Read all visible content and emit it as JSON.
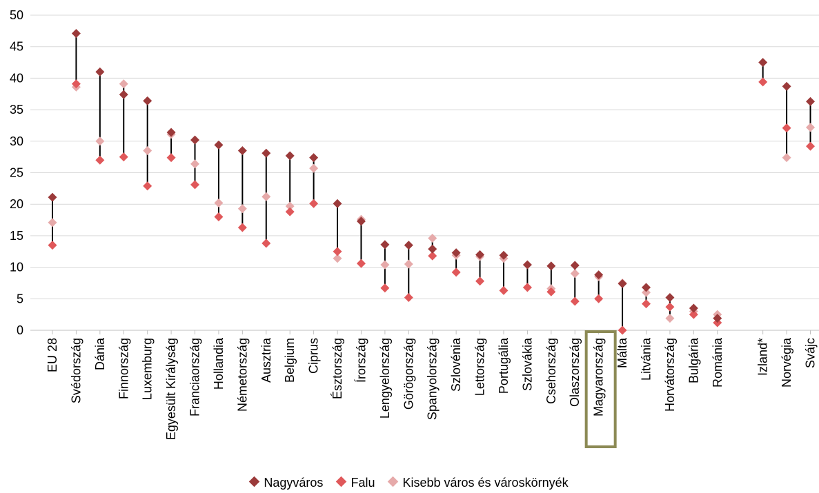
{
  "colors": {
    "nagyvaros": "#9b3a3a",
    "falu": "#e0585a",
    "kisebb": "#e6aaaa",
    "connector": "#000000",
    "highlight_box": "#8c8a55",
    "grid": "#d9d9d9"
  },
  "legend": {
    "nagyvaros": "Nagyváros",
    "falu": "Falu",
    "kisebb": "Kisebb város és városkörnyék"
  },
  "chart_data": {
    "type": "scatter",
    "title": "",
    "xlabel": "",
    "ylabel": "",
    "ylim": [
      0,
      50
    ],
    "yticks": [
      0,
      5,
      10,
      15,
      20,
      25,
      30,
      35,
      40,
      45,
      50
    ],
    "grid": true,
    "legend_position": "bottom",
    "highlight_category": "Magyarország",
    "categories": [
      "EU 28",
      "Svédország",
      "Dánia",
      "Finnország",
      "Luxemburg",
      "Egyesült Királyság",
      "Franciaország",
      "Hollandia",
      "Németország",
      "Ausztria",
      "Belgium",
      "Ciprus",
      "Észtország",
      "Írország",
      "Lengyelország",
      "Görögország",
      "Spanyolország",
      "Szlovénia",
      "Lettország",
      "Portugália",
      "Szlovákia",
      "Csehország",
      "Olaszország",
      "Magyarország",
      "Málta",
      "Litvánia",
      "Horvátország",
      "Bulgária",
      "Románia",
      "Izland*",
      "Norvégia",
      "Svájc"
    ],
    "series": [
      {
        "name": "Nagyváros",
        "values": [
          21.1,
          47.1,
          41.0,
          37.4,
          36.4,
          31.4,
          30.2,
          29.4,
          28.5,
          28.1,
          27.7,
          27.4,
          20.1,
          17.3,
          13.6,
          13.5,
          12.9,
          12.3,
          12.0,
          11.9,
          10.4,
          10.2,
          10.3,
          8.8,
          7.4,
          6.8,
          5.2,
          3.5,
          1.9,
          42.5,
          38.7,
          36.3
        ]
      },
      {
        "name": "Falu",
        "values": [
          13.5,
          39.1,
          27.0,
          27.5,
          22.9,
          27.4,
          23.1,
          18.0,
          16.3,
          13.8,
          18.8,
          20.1,
          12.5,
          10.6,
          6.7,
          5.2,
          11.8,
          9.2,
          7.8,
          6.3,
          6.8,
          6.1,
          4.6,
          5.0,
          0.0,
          4.2,
          3.7,
          2.5,
          1.2,
          39.4,
          32.1,
          29.2
        ]
      },
      {
        "name": "Kisebb város és városkörnyék",
        "values": [
          17.1,
          38.6,
          30.0,
          39.1,
          28.5,
          31.1,
          26.4,
          20.2,
          19.3,
          21.2,
          19.7,
          25.7,
          11.4,
          17.6,
          10.4,
          10.5,
          14.6,
          11.9,
          11.7,
          11.4,
          6.8,
          6.6,
          9.0,
          8.5,
          7.5,
          6.0,
          1.9,
          3.0,
          2.5,
          null,
          27.4,
          32.2
        ]
      }
    ]
  }
}
